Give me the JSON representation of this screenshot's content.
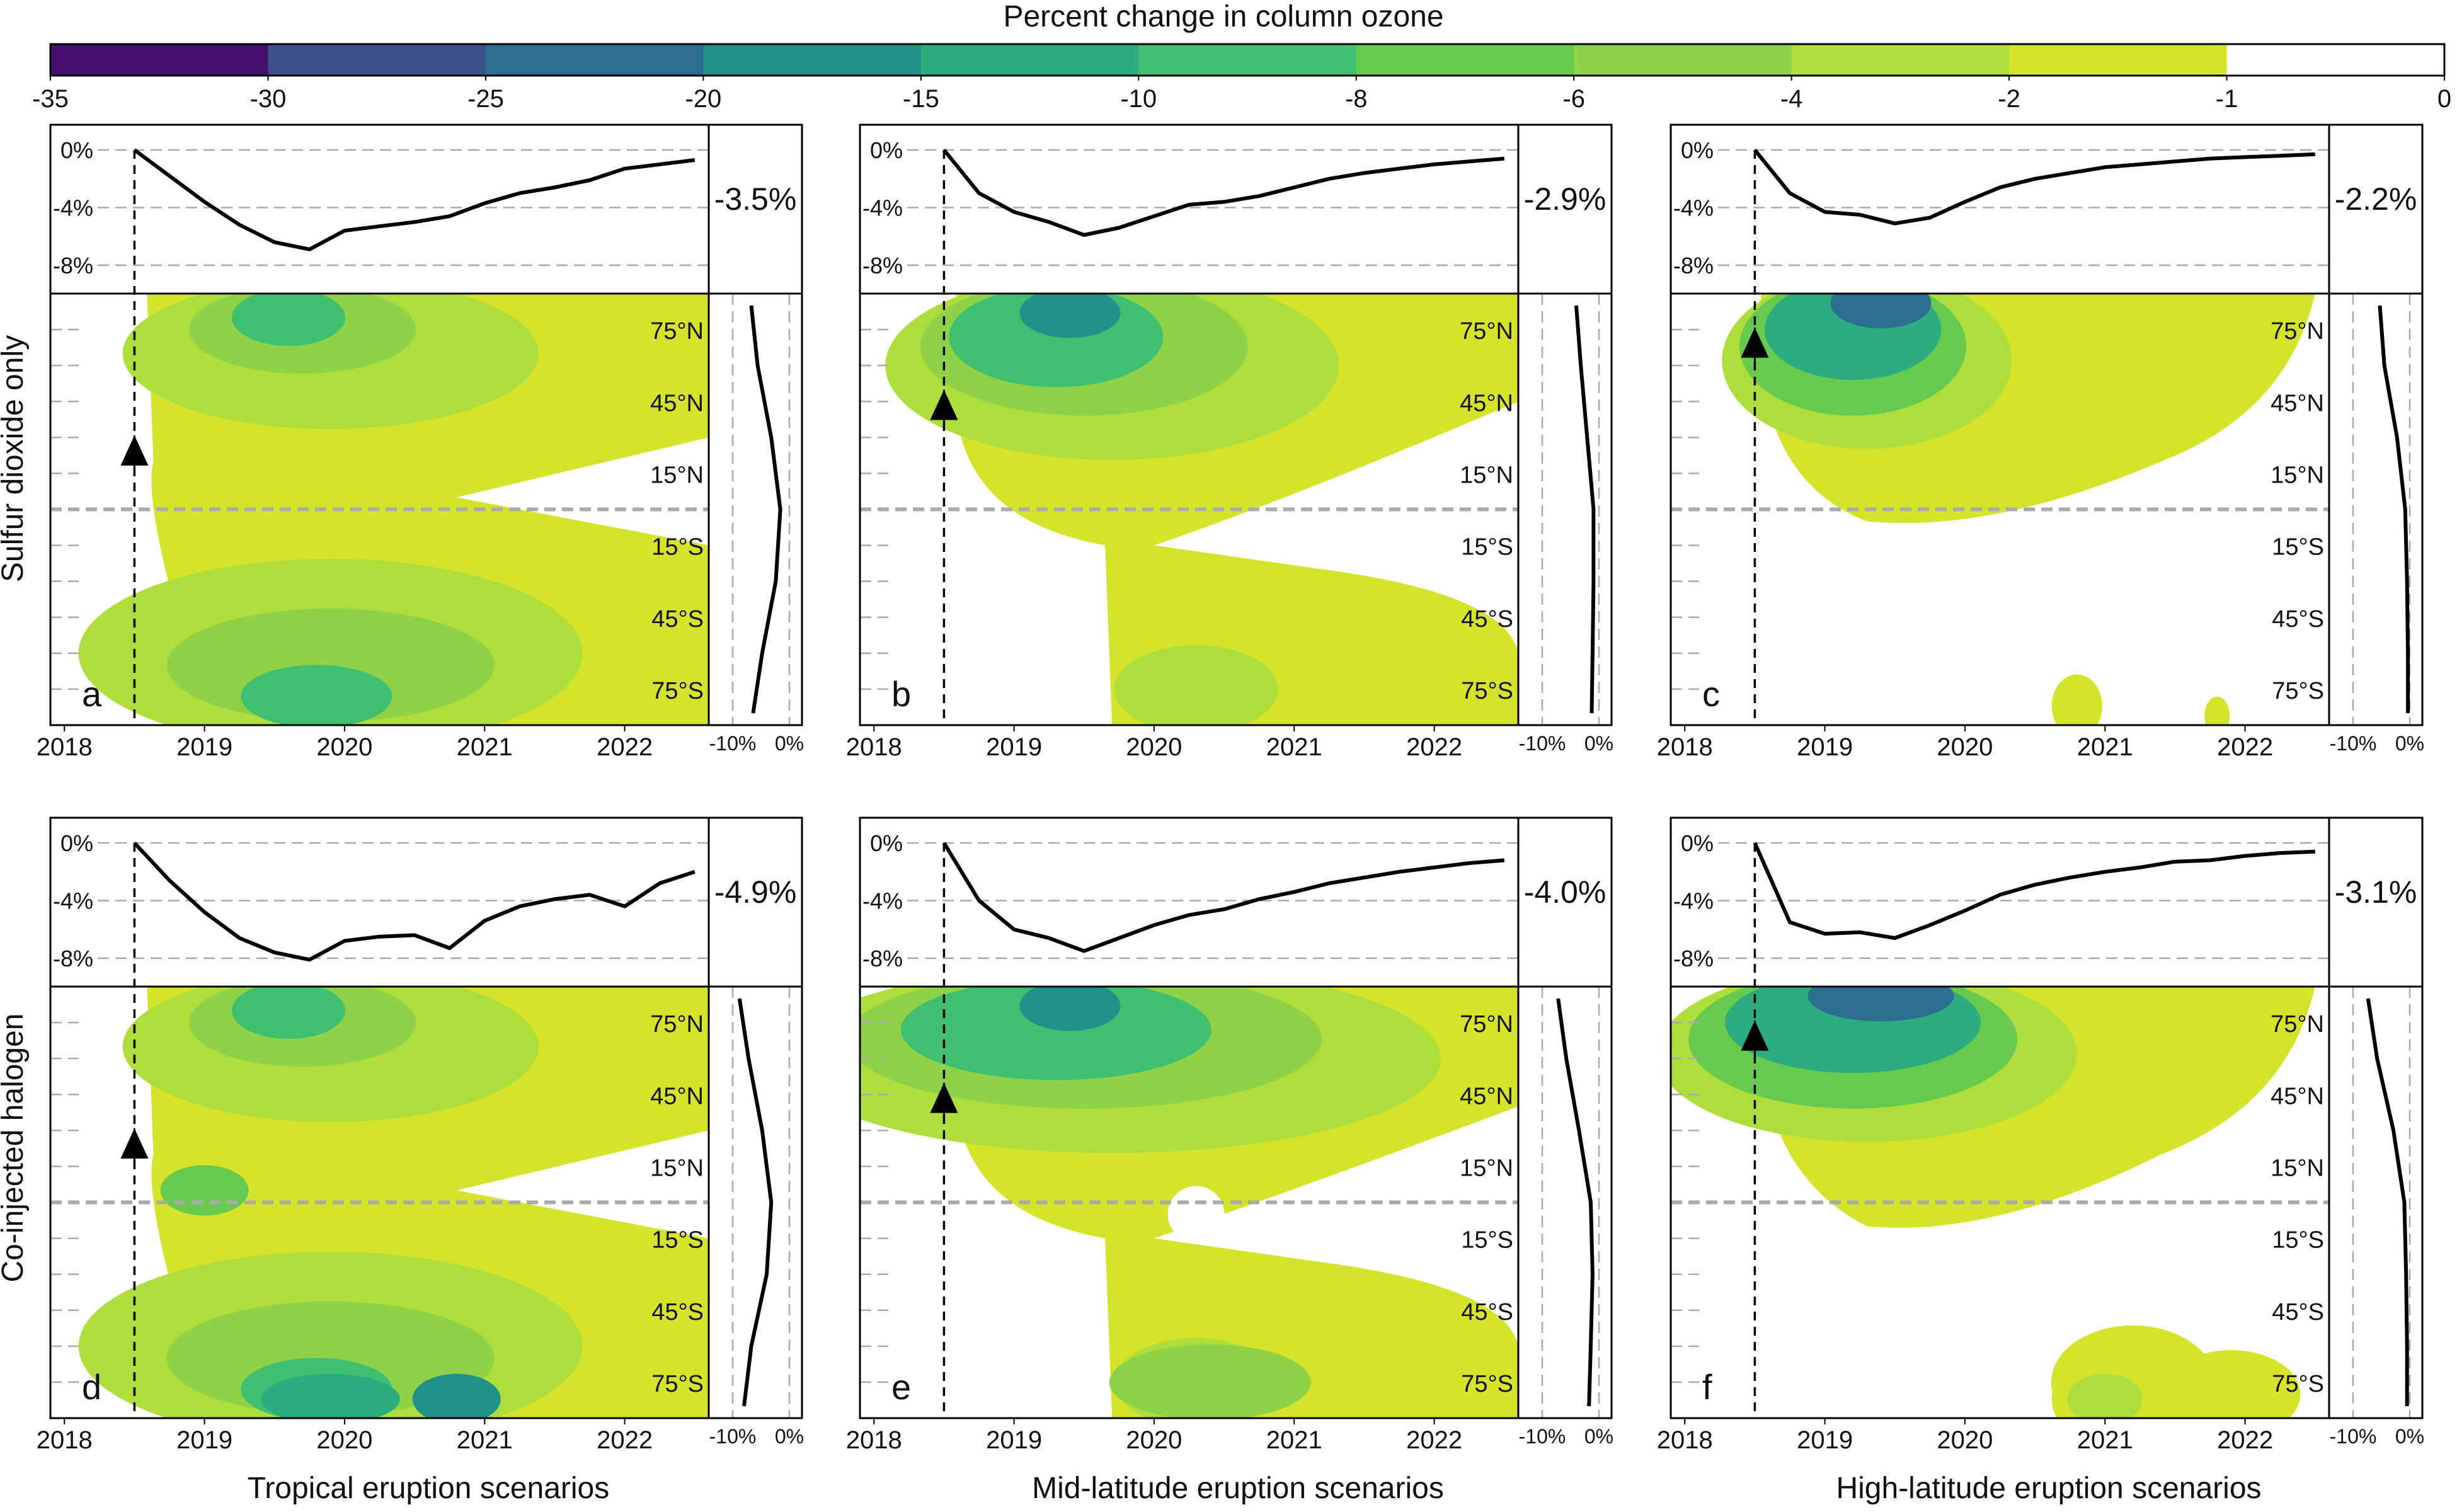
{
  "colorbar": {
    "title": "Percent change in column ozone",
    "ticks": [
      "-35",
      "-30",
      "-25",
      "-20",
      "-15",
      "-10",
      "-8",
      "-6",
      "-4",
      "-2",
      "-1",
      "0"
    ],
    "colors": [
      "#440f6d",
      "#3b4f8a",
      "#2c6e8e",
      "#21918c",
      "#2bad7f",
      "#3ec070",
      "#68c94f",
      "#8fd147",
      "#aede3c",
      "#d6e32b",
      "#ffffff"
    ]
  },
  "row_labels": [
    "Sulfur dioxide only",
    "Co-injected halogen"
  ],
  "column_labels": [
    "Tropical eruption scenarios",
    "Mid-latitude eruption scenarios",
    "High-latitude eruption scenarios"
  ],
  "lat_labels": [
    "75°N",
    "45°N",
    "15°N",
    "15°S",
    "45°S",
    "75°S"
  ],
  "year_labels": [
    "2018",
    "2019",
    "2020",
    "2021",
    "2022"
  ],
  "top_ticks": [
    "0%",
    "-4%",
    "-8%"
  ],
  "side_ticks": [
    "-10%",
    "0%"
  ],
  "chart_data": [
    {
      "panel": "a",
      "type": "area",
      "scenario": "Tropical",
      "injection": "Sulfur dioxide only",
      "global_mean_change": "-3.5%",
      "eruption_time": 2018.5,
      "eruption_lat": 23,
      "global_series": {
        "x": [
          2018.5,
          2018.75,
          2019.0,
          2019.25,
          2019.5,
          2019.75,
          2020.0,
          2020.25,
          2020.5,
          2020.75,
          2021.0,
          2021.25,
          2021.5,
          2021.75,
          2022.0,
          2022.25,
          2022.5
        ],
        "y": [
          0,
          -1.8,
          -3.6,
          -5.2,
          -6.4,
          -6.9,
          -5.6,
          -5.3,
          -5.0,
          -4.6,
          -3.7,
          -3.0,
          -2.6,
          -2.1,
          -1.3,
          -1.0,
          -0.7
        ]
      },
      "lat_profile": {
        "lat": [
          85,
          60,
          30,
          0,
          -30,
          -60,
          -85
        ],
        "y": [
          -4.2,
          -3.5,
          -2.0,
          -1.0,
          -1.5,
          -3.0,
          -4.0
        ]
      }
    },
    {
      "panel": "b",
      "type": "area",
      "scenario": "Mid-latitude",
      "injection": "Sulfur dioxide only",
      "global_mean_change": "-2.9%",
      "eruption_time": 2018.5,
      "eruption_lat": 42,
      "global_series": {
        "x": [
          2018.5,
          2018.75,
          2019.0,
          2019.25,
          2019.5,
          2019.75,
          2020.0,
          2020.25,
          2020.5,
          2020.75,
          2021.0,
          2021.25,
          2021.5,
          2021.75,
          2022.0,
          2022.25,
          2022.5
        ],
        "y": [
          0,
          -3.0,
          -4.3,
          -5.0,
          -5.9,
          -5.4,
          -4.6,
          -3.8,
          -3.6,
          -3.2,
          -2.6,
          -2.0,
          -1.6,
          -1.3,
          -1.0,
          -0.8,
          -0.6
        ]
      },
      "lat_profile": {
        "lat": [
          85,
          60,
          30,
          0,
          -30,
          -60,
          -85
        ],
        "y": [
          -2.5,
          -2.0,
          -1.3,
          -0.6,
          -0.6,
          -0.7,
          -0.8
        ]
      }
    },
    {
      "panel": "c",
      "type": "area",
      "scenario": "High-latitude",
      "injection": "Sulfur dioxide only",
      "global_mean_change": "-2.2%",
      "eruption_time": 2018.5,
      "eruption_lat": 68,
      "global_series": {
        "x": [
          2018.5,
          2018.75,
          2019.0,
          2019.25,
          2019.5,
          2019.75,
          2020.0,
          2020.25,
          2020.5,
          2020.75,
          2021.0,
          2021.25,
          2021.5,
          2021.75,
          2022.0,
          2022.25,
          2022.5
        ],
        "y": [
          0,
          -3.0,
          -4.3,
          -4.5,
          -5.1,
          -4.7,
          -3.6,
          -2.6,
          -2.0,
          -1.6,
          -1.2,
          -1.0,
          -0.8,
          -0.6,
          -0.5,
          -0.4,
          -0.3
        ]
      },
      "lat_profile": {
        "lat": [
          85,
          60,
          30,
          0,
          -30,
          -60,
          -85
        ],
        "y": [
          -3.3,
          -2.8,
          -1.4,
          -0.5,
          -0.3,
          -0.2,
          -0.2
        ]
      }
    },
    {
      "panel": "d",
      "type": "area",
      "scenario": "Tropical",
      "injection": "Co-injected halogen",
      "global_mean_change": "-4.9%",
      "eruption_time": 2018.5,
      "eruption_lat": 23,
      "global_series": {
        "x": [
          2018.5,
          2018.75,
          2019.0,
          2019.25,
          2019.5,
          2019.75,
          2020.0,
          2020.25,
          2020.5,
          2020.75,
          2021.0,
          2021.25,
          2021.5,
          2021.75,
          2022.0,
          2022.25,
          2022.5
        ],
        "y": [
          0,
          -2.6,
          -4.8,
          -6.6,
          -7.6,
          -8.1,
          -6.8,
          -6.5,
          -6.4,
          -7.3,
          -5.4,
          -4.4,
          -3.9,
          -3.6,
          -4.4,
          -2.8,
          -2.0
        ]
      },
      "lat_profile": {
        "lat": [
          85,
          60,
          30,
          0,
          -30,
          -60,
          -85
        ],
        "y": [
          -5.5,
          -4.5,
          -3.0,
          -2.0,
          -2.5,
          -4.2,
          -5.0
        ]
      }
    },
    {
      "panel": "e",
      "type": "area",
      "scenario": "Mid-latitude",
      "injection": "Co-injected halogen",
      "global_mean_change": "-4.0%",
      "eruption_time": 2018.5,
      "eruption_lat": 42,
      "global_series": {
        "x": [
          2018.5,
          2018.75,
          2019.0,
          2019.25,
          2019.5,
          2019.75,
          2020.0,
          2020.25,
          2020.5,
          2020.75,
          2021.0,
          2021.25,
          2021.5,
          2021.75,
          2022.0,
          2022.25,
          2022.5
        ],
        "y": [
          0,
          -4.0,
          -6.0,
          -6.6,
          -7.5,
          -6.6,
          -5.7,
          -5.0,
          -4.6,
          -3.9,
          -3.4,
          -2.8,
          -2.4,
          -2.0,
          -1.7,
          -1.4,
          -1.2
        ]
      },
      "lat_profile": {
        "lat": [
          85,
          60,
          30,
          0,
          -30,
          -60,
          -85
        ],
        "y": [
          -4.5,
          -3.6,
          -2.2,
          -0.9,
          -0.7,
          -0.9,
          -1.1
        ]
      }
    },
    {
      "panel": "f",
      "type": "area",
      "scenario": "High-latitude",
      "injection": "Co-injected halogen",
      "global_mean_change": "-3.1%",
      "eruption_time": 2018.5,
      "eruption_lat": 68,
      "global_series": {
        "x": [
          2018.5,
          2018.75,
          2019.0,
          2019.25,
          2019.5,
          2019.75,
          2020.0,
          2020.25,
          2020.5,
          2020.75,
          2021.0,
          2021.25,
          2021.5,
          2021.75,
          2022.0,
          2022.25,
          2022.5
        ],
        "y": [
          0,
          -5.5,
          -6.3,
          -6.2,
          -6.6,
          -5.7,
          -4.7,
          -3.6,
          -2.9,
          -2.4,
          -2.0,
          -1.7,
          -1.3,
          -1.2,
          -0.9,
          -0.7,
          -0.6
        ]
      },
      "lat_profile": {
        "lat": [
          85,
          60,
          30,
          0,
          -30,
          -60,
          -85
        ],
        "y": [
          -4.6,
          -3.6,
          -1.8,
          -0.6,
          -0.4,
          -0.3,
          -0.3
        ]
      }
    }
  ]
}
